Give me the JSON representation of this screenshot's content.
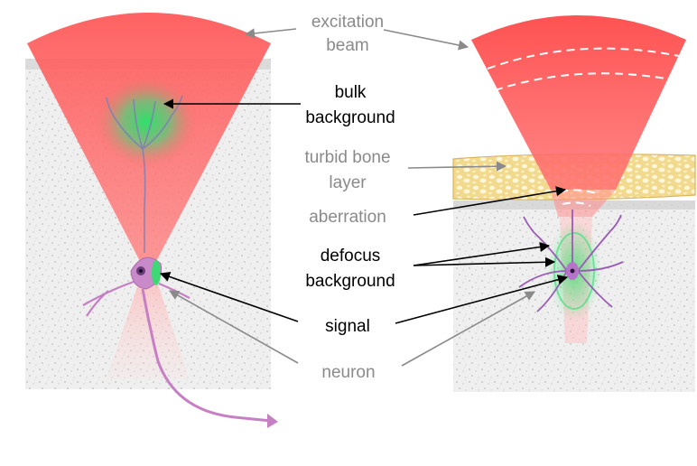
{
  "labels": {
    "excitation_beam": [
      "excitation",
      "beam"
    ],
    "bulk_background": [
      "bulk",
      "background"
    ],
    "turbid_bone_layer": [
      "turbid bone",
      "layer"
    ],
    "aberration": "aberration",
    "defocus_background": [
      "defocus",
      "background"
    ],
    "signal": "signal",
    "neuron": "neuron"
  },
  "colors": {
    "beam": "#ff5a5a",
    "fluorescence": "#2fe06a",
    "neuron": "#c77fc4",
    "bone": "#e7c26a",
    "tissue": "#e6e6e6",
    "gray_text": "#8a8a8a",
    "black_text": "#000000"
  }
}
